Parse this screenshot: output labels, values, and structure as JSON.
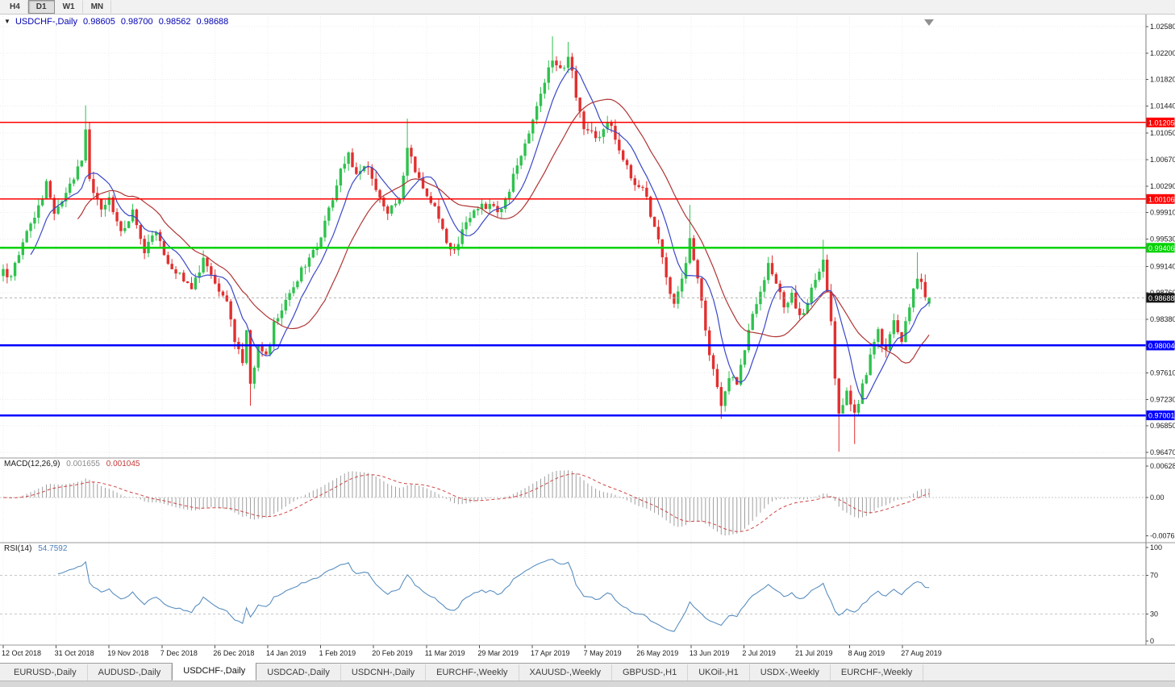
{
  "toolbar": {
    "periods": [
      {
        "label": "H4",
        "active": false
      },
      {
        "label": "D1",
        "active": true
      },
      {
        "label": "W1",
        "active": false
      },
      {
        "label": "MN",
        "active": false
      }
    ]
  },
  "chart": {
    "title": "USDCHF-,Daily",
    "open": "0.98605",
    "high": "0.98700",
    "low": "0.98562",
    "close": "0.98688"
  },
  "price_axis": {
    "ticks": [
      "1.02580",
      "1.02200",
      "1.01820",
      "1.01440",
      "1.01050",
      "1.00670",
      "1.00290",
      "0.99910",
      "0.99530",
      "0.99140",
      "0.98760",
      "0.98380",
      "0.97990",
      "0.97610",
      "0.97230",
      "0.96850",
      "0.96470"
    ]
  },
  "levels": [
    {
      "value": 1.01205,
      "label": "1.01205",
      "color": "#fe0000",
      "width": 1.6
    },
    {
      "value": 1.00106,
      "label": "1.00106",
      "color": "#fe0000",
      "width": 1.6
    },
    {
      "value": 0.99406,
      "label": "0.99406",
      "color": "#00d200",
      "width": 2.6
    },
    {
      "value": 0.98004,
      "label": "0.98004",
      "color": "#0000ff",
      "width": 2.6
    },
    {
      "value": 0.97001,
      "label": "0.97001",
      "color": "#0000ff",
      "width": 2.6
    }
  ],
  "current_price": {
    "value": 0.98688,
    "label": "0.98688",
    "color": "#151515"
  },
  "indicators": {
    "macd": {
      "label": "MACD(12,26,9)",
      "value_main": "0.001655",
      "value_signal": "0.001045",
      "axis_labels": [
        "0.006286",
        "0.00",
        "-0.00762"
      ],
      "scale_top": 0.006286,
      "scale_bottom": -0.00762
    },
    "rsi": {
      "label": "RSI(14)",
      "value": "54.7592",
      "axis_labels": [
        "100",
        "70",
        "30",
        "0"
      ],
      "levels": [
        70,
        30
      ]
    }
  },
  "dates": [
    "12 Oct 2018",
    "31 Oct 2018",
    "19 Nov 2018",
    "7 Dec 2018",
    "26 Dec 2018",
    "14 Jan 2019",
    "1 Feb 2019",
    "20 Feb 2019",
    "11 Mar 2019",
    "29 Mar 2019",
    "17 Apr 2019",
    "7 May 2019",
    "26 May 2019",
    "13 Jun 2019",
    "2 Jul 2019",
    "21 Jul 2019",
    "8 Aug 2019",
    "27 Aug 2019"
  ],
  "tabs": [
    {
      "label": "EURUSD-,Daily",
      "active": false
    },
    {
      "label": "AUDUSD-,Daily",
      "active": false
    },
    {
      "label": "USDCHF-,Daily",
      "active": true
    },
    {
      "label": "USDCAD-,Daily",
      "active": false
    },
    {
      "label": "USDCNH-,Daily",
      "active": false
    },
    {
      "label": "EURCHF-,Weekly",
      "active": false
    },
    {
      "label": "XAUUSD-,Weekly",
      "active": false
    },
    {
      "label": "GBPUSD-,H1",
      "active": false
    },
    {
      "label": "UKOil-,H1",
      "active": false
    },
    {
      "label": "USDX-,Weekly",
      "active": false
    },
    {
      "label": "EURCHF-,Weekly",
      "active": false
    }
  ],
  "chart_data": {
    "type": "candlestick",
    "symbol": "USDCHF",
    "timeframe": "Daily",
    "last_ohlc": {
      "open": 0.98605,
      "high": 0.987,
      "low": 0.98562,
      "close": 0.98688
    },
    "ylim": [
      0.9647,
      1.0258
    ],
    "num_candles": 237,
    "ma_fast_period": 8,
    "ma_slow_period": 20,
    "anchors": [
      [
        0,
        0.9905
      ],
      [
        2,
        0.9893
      ],
      [
        4,
        0.9935
      ],
      [
        6,
        0.9958
      ],
      [
        8,
        0.9985
      ],
      [
        11,
        1.003
      ],
      [
        13,
        0.999
      ],
      [
        15,
        1.0005
      ],
      [
        17,
        1.0028
      ],
      [
        20,
        1.0062
      ],
      [
        21,
        1.0108
      ],
      [
        22,
        1.004
      ],
      [
        25,
        0.9995
      ],
      [
        27,
        1.0012
      ],
      [
        30,
        0.996
      ],
      [
        33,
        0.9992
      ],
      [
        36,
        0.9938
      ],
      [
        39,
        0.9958
      ],
      [
        42,
        0.9922
      ],
      [
        45,
        0.9902
      ],
      [
        48,
        0.9882
      ],
      [
        51,
        0.9922
      ],
      [
        54,
        0.9892
      ],
      [
        57,
        0.9858
      ],
      [
        59,
        0.9806
      ],
      [
        61,
        0.9776
      ],
      [
        62,
        0.9828
      ],
      [
        63,
        0.9748
      ],
      [
        65,
        0.98
      ],
      [
        67,
        0.9786
      ],
      [
        69,
        0.9828
      ],
      [
        72,
        0.9866
      ],
      [
        75,
        0.9896
      ],
      [
        78,
        0.9926
      ],
      [
        81,
        0.9958
      ],
      [
        84,
        1.0008
      ],
      [
        86,
        1.0055
      ],
      [
        88,
        1.0076
      ],
      [
        90,
        1.0042
      ],
      [
        93,
        1.0056
      ],
      [
        95,
        1.0022
      ],
      [
        98,
        0.9992
      ],
      [
        101,
        1.0006
      ],
      [
        103,
        1.0088
      ],
      [
        105,
        1.0052
      ],
      [
        108,
        1.0012
      ],
      [
        111,
        0.9986
      ],
      [
        113,
        0.9948
      ],
      [
        115,
        0.9932
      ],
      [
        118,
        0.998
      ],
      [
        121,
        0.9996
      ],
      [
        124,
        1.0006
      ],
      [
        127,
        0.9992
      ],
      [
        130,
        1.0042
      ],
      [
        133,
        1.0092
      ],
      [
        136,
        1.0142
      ],
      [
        138,
        1.0182
      ],
      [
        140,
        1.0216
      ],
      [
        142,
        1.0192
      ],
      [
        144,
        1.0214
      ],
      [
        146,
        1.0162
      ],
      [
        148,
        1.0116
      ],
      [
        151,
        1.0096
      ],
      [
        154,
        1.0122
      ],
      [
        157,
        1.0082
      ],
      [
        160,
        1.0042
      ],
      [
        163,
        1.0026
      ],
      [
        165,
        0.9992
      ],
      [
        167,
        0.9952
      ],
      [
        169,
        0.9902
      ],
      [
        171,
        0.9856
      ],
      [
        173,
        0.9892
      ],
      [
        175,
        0.9956
      ],
      [
        177,
        0.9902
      ],
      [
        179,
        0.9822
      ],
      [
        181,
        0.9762
      ],
      [
        183,
        0.9718
      ],
      [
        185,
        0.9756
      ],
      [
        187,
        0.9742
      ],
      [
        189,
        0.9792
      ],
      [
        191,
        0.9846
      ],
      [
        193,
        0.9882
      ],
      [
        195,
        0.9916
      ],
      [
        197,
        0.9892
      ],
      [
        199,
        0.9856
      ],
      [
        201,
        0.9876
      ],
      [
        203,
        0.9842
      ],
      [
        205,
        0.9862
      ],
      [
        207,
        0.9896
      ],
      [
        209,
        0.9926
      ],
      [
        211,
        0.9832
      ],
      [
        212,
        0.9756
      ],
      [
        213,
        0.9702
      ],
      [
        215,
        0.9732
      ],
      [
        217,
        0.9698
      ],
      [
        219,
        0.9742
      ],
      [
        221,
        0.9782
      ],
      [
        223,
        0.9822
      ],
      [
        225,
        0.9792
      ],
      [
        227,
        0.9836
      ],
      [
        229,
        0.9806
      ],
      [
        231,
        0.9856
      ],
      [
        233,
        0.9902
      ],
      [
        235,
        0.9868
      ],
      [
        236,
        0.98688
      ]
    ],
    "overrides": {
      "21": {
        "h": 1.0145
      },
      "63": {
        "l": 0.9714
      },
      "103": {
        "h": 1.0126
      },
      "140": {
        "h": 1.0244
      },
      "144": {
        "h": 1.0236
      },
      "175": {
        "h": 1.0002
      },
      "183": {
        "l": 0.9695
      },
      "209": {
        "h": 0.9952
      },
      "213": {
        "l": 0.9648
      },
      "217": {
        "l": 0.9659
      },
      "233": {
        "h": 0.9934
      },
      "236": {
        "o": 0.98605,
        "h": 0.987,
        "l": 0.98562,
        "c": 0.98688
      }
    },
    "colors": {
      "up": "#2fc24e",
      "down": "#e13030",
      "ma_fast": "#3948c8",
      "ma_slow": "#b03434",
      "macd_hist": "#9f9f9f",
      "macd_signal": "#d04545",
      "rsi": "#5a8fc0",
      "grid": "#ececec",
      "separator": "#9a9a9a",
      "axis_text": "#1a1a1a"
    }
  }
}
